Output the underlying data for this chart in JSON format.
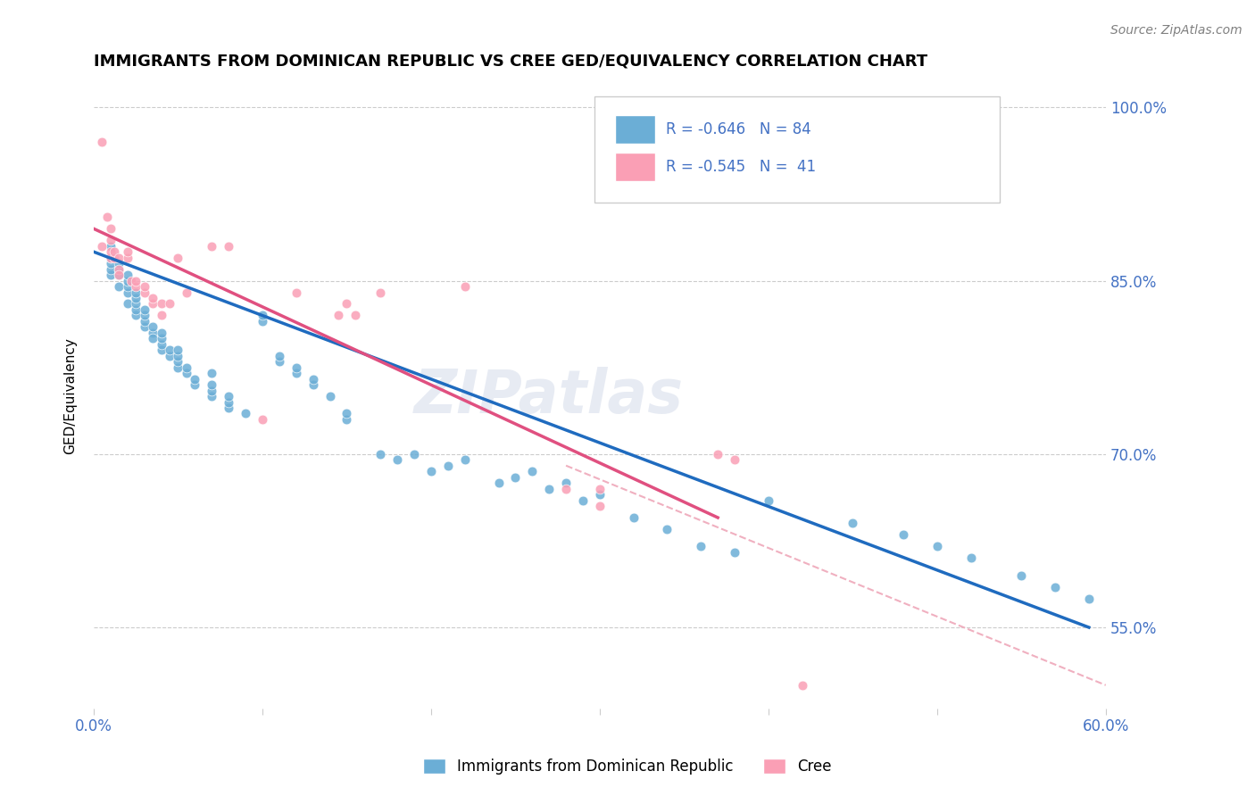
{
  "title": "IMMIGRANTS FROM DOMINICAN REPUBLIC VS CREE GED/EQUIVALENCY CORRELATION CHART",
  "source": "Source: ZipAtlas.com",
  "ylabel": "GED/Equivalency",
  "x_min": 0.0,
  "x_max": 0.6,
  "y_min": 0.48,
  "y_max": 1.02,
  "yticks": [
    0.55,
    0.7,
    0.85,
    1.0
  ],
  "ytick_labels": [
    "55.0%",
    "70.0%",
    "85.0%",
    "100.0%"
  ],
  "xticks": [
    0.0,
    0.1,
    0.2,
    0.3,
    0.4,
    0.5,
    0.6
  ],
  "xtick_labels": [
    "0.0%",
    "",
    "",
    "",
    "",
    "",
    "60.0%"
  ],
  "blue_color": "#6baed6",
  "pink_color": "#fa9fb5",
  "trend_blue": "#1f6bbf",
  "trend_pink": "#e05080",
  "trend_dashed": "#f0b0c0",
  "axis_color": "#4472c4",
  "legend_R1": "-0.646",
  "legend_N1": "84",
  "legend_R2": "-0.545",
  "legend_N2": "41",
  "legend_label1": "Immigrants from Dominican Republic",
  "legend_label2": "Cree",
  "watermark": "ZIPatlas",
  "blue_scatter_x": [
    0.01,
    0.01,
    0.01,
    0.01,
    0.01,
    0.015,
    0.015,
    0.015,
    0.015,
    0.02,
    0.02,
    0.02,
    0.02,
    0.02,
    0.025,
    0.025,
    0.025,
    0.025,
    0.025,
    0.03,
    0.03,
    0.03,
    0.03,
    0.035,
    0.035,
    0.035,
    0.04,
    0.04,
    0.04,
    0.04,
    0.045,
    0.045,
    0.05,
    0.05,
    0.05,
    0.05,
    0.055,
    0.055,
    0.06,
    0.06,
    0.07,
    0.07,
    0.07,
    0.07,
    0.08,
    0.08,
    0.08,
    0.09,
    0.1,
    0.1,
    0.11,
    0.11,
    0.12,
    0.12,
    0.13,
    0.13,
    0.14,
    0.15,
    0.15,
    0.17,
    0.18,
    0.19,
    0.2,
    0.21,
    0.22,
    0.24,
    0.25,
    0.26,
    0.27,
    0.28,
    0.29,
    0.3,
    0.32,
    0.34,
    0.36,
    0.38,
    0.4,
    0.45,
    0.48,
    0.5,
    0.52,
    0.55,
    0.57,
    0.59
  ],
  "blue_scatter_y": [
    0.855,
    0.86,
    0.865,
    0.87,
    0.88,
    0.845,
    0.855,
    0.86,
    0.865,
    0.83,
    0.84,
    0.845,
    0.85,
    0.855,
    0.82,
    0.825,
    0.83,
    0.835,
    0.84,
    0.81,
    0.815,
    0.82,
    0.825,
    0.805,
    0.8,
    0.81,
    0.79,
    0.795,
    0.8,
    0.805,
    0.785,
    0.79,
    0.775,
    0.78,
    0.785,
    0.79,
    0.77,
    0.775,
    0.76,
    0.765,
    0.75,
    0.755,
    0.76,
    0.77,
    0.74,
    0.745,
    0.75,
    0.735,
    0.815,
    0.82,
    0.78,
    0.785,
    0.77,
    0.775,
    0.76,
    0.765,
    0.75,
    0.73,
    0.735,
    0.7,
    0.695,
    0.7,
    0.685,
    0.69,
    0.695,
    0.675,
    0.68,
    0.685,
    0.67,
    0.675,
    0.66,
    0.665,
    0.645,
    0.635,
    0.62,
    0.615,
    0.66,
    0.64,
    0.63,
    0.62,
    0.61,
    0.595,
    0.585,
    0.575
  ],
  "pink_scatter_x": [
    0.005,
    0.005,
    0.008,
    0.01,
    0.01,
    0.01,
    0.01,
    0.012,
    0.012,
    0.015,
    0.015,
    0.015,
    0.02,
    0.02,
    0.022,
    0.025,
    0.025,
    0.03,
    0.03,
    0.035,
    0.035,
    0.04,
    0.04,
    0.045,
    0.05,
    0.055,
    0.07,
    0.08,
    0.1,
    0.12,
    0.145,
    0.15,
    0.155,
    0.17,
    0.22,
    0.28,
    0.3,
    0.3,
    0.37,
    0.38,
    0.42
  ],
  "pink_scatter_y": [
    0.97,
    0.88,
    0.905,
    0.885,
    0.895,
    0.87,
    0.875,
    0.87,
    0.875,
    0.86,
    0.87,
    0.855,
    0.87,
    0.875,
    0.85,
    0.845,
    0.85,
    0.84,
    0.845,
    0.83,
    0.835,
    0.82,
    0.83,
    0.83,
    0.87,
    0.84,
    0.88,
    0.88,
    0.73,
    0.84,
    0.82,
    0.83,
    0.82,
    0.84,
    0.845,
    0.67,
    0.67,
    0.655,
    0.7,
    0.695,
    0.5
  ],
  "blue_line_x": [
    0.0,
    0.59
  ],
  "blue_line_y": [
    0.875,
    0.55
  ],
  "pink_line_x": [
    0.0,
    0.37
  ],
  "pink_line_y": [
    0.895,
    0.645
  ],
  "dashed_line_x": [
    0.28,
    0.6
  ],
  "dashed_line_y": [
    0.69,
    0.5
  ]
}
